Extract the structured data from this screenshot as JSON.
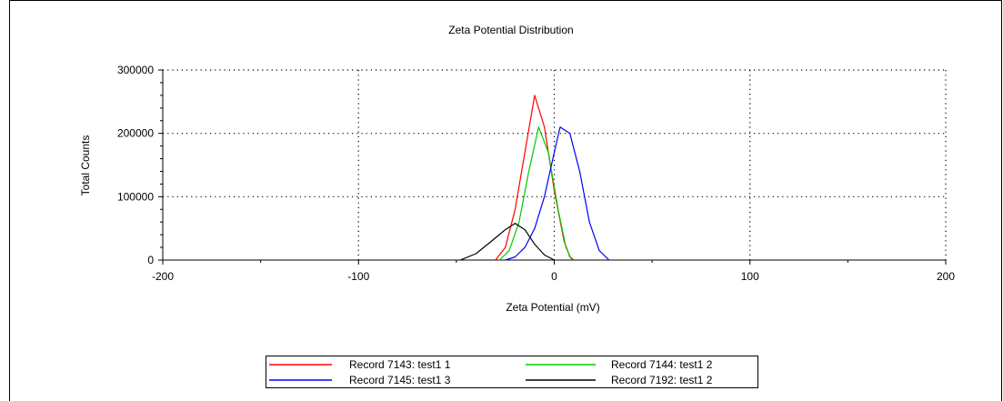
{
  "chart_data": {
    "type": "line",
    "title": "Zeta Potential Distribution",
    "xlabel": "Zeta Potential (mV)",
    "ylabel": "Total Counts",
    "xlim": [
      -200,
      200
    ],
    "ylim": [
      0,
      300000
    ],
    "xticks": [
      -200,
      -100,
      0,
      100,
      200
    ],
    "xtick_labels": [
      "-200",
      "-100",
      "0",
      "100",
      "200"
    ],
    "yticks": [
      0,
      100000,
      200000,
      300000
    ],
    "ytick_labels": [
      "0",
      "100000",
      "200000",
      "300000"
    ],
    "grid": true,
    "legend_position": "bottom",
    "series": [
      {
        "name": "Record 7143: test1 1",
        "color": "#ff0000",
        "x": [
          -30,
          -25,
          -20,
          -15,
          -10,
          -5,
          0,
          5,
          8,
          10
        ],
        "y": [
          0,
          20000,
          80000,
          170000,
          260000,
          210000,
          110000,
          30000,
          5000,
          0
        ]
      },
      {
        "name": "Record 7144: test1 2",
        "color": "#00cc00",
        "x": [
          -28,
          -23,
          -18,
          -13,
          -8,
          -3,
          2,
          6,
          9
        ],
        "y": [
          0,
          15000,
          60000,
          140000,
          210000,
          170000,
          80000,
          20000,
          0
        ]
      },
      {
        "name": "Record 7145: test1 3",
        "color": "#0000ff",
        "x": [
          -25,
          -20,
          -15,
          -10,
          -5,
          0,
          3,
          8,
          13,
          18,
          23,
          28
        ],
        "y": [
          0,
          5000,
          20000,
          50000,
          100000,
          170000,
          210000,
          200000,
          140000,
          60000,
          15000,
          0
        ]
      },
      {
        "name": "Record 7192: test1 2",
        "color": "#000000",
        "x": [
          -48,
          -40,
          -32,
          -25,
          -20,
          -15,
          -10,
          -5,
          0
        ],
        "y": [
          0,
          10000,
          30000,
          48000,
          58000,
          48000,
          25000,
          8000,
          0
        ]
      }
    ]
  },
  "legend": {
    "entries": [
      {
        "label": "Record 7143: test1 1",
        "color": "#ff0000"
      },
      {
        "label": "Record 7144: test1 2",
        "color": "#00cc00"
      },
      {
        "label": "Record 7145: test1 3",
        "color": "#0000ff"
      },
      {
        "label": "Record 7192: test1 2",
        "color": "#000000"
      }
    ]
  }
}
